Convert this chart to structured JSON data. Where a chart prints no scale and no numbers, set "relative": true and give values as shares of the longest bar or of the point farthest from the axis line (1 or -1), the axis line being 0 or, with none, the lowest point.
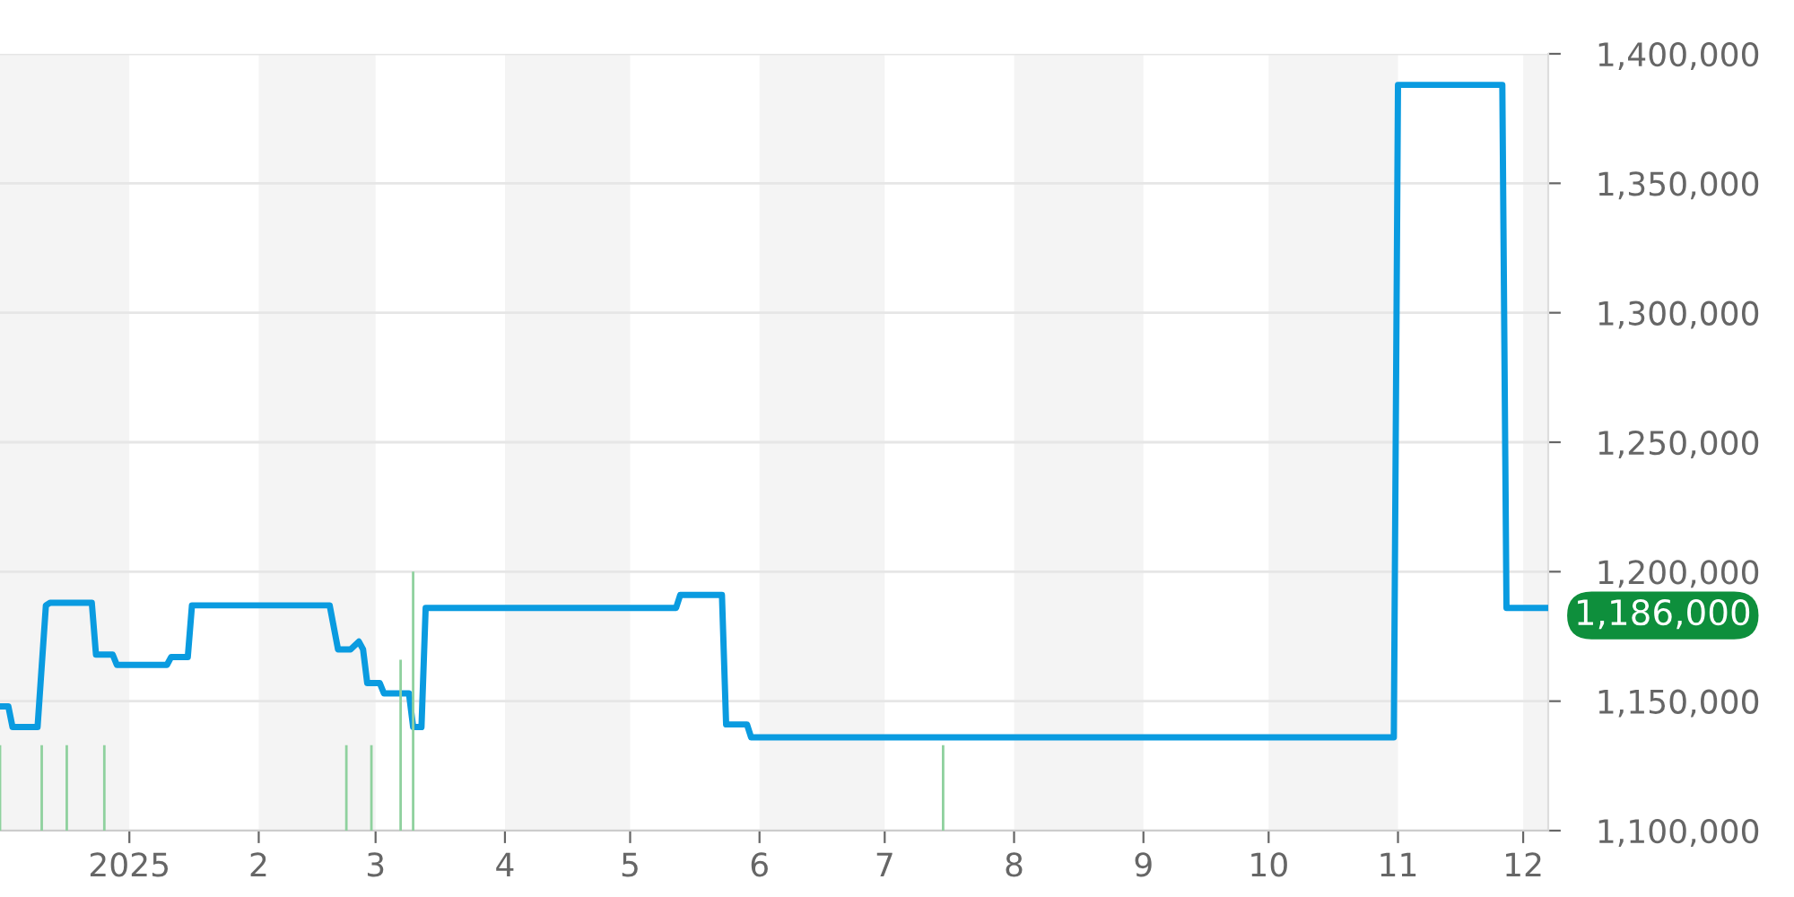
{
  "chart_data": [
    {
      "type": "line",
      "xlim": [
        "2024-12-01",
        "2025-12-07"
      ],
      "xticks": [
        {
          "value": "2025-01-01",
          "label": "2025"
        },
        {
          "value": "2025-02-01",
          "label": "2"
        },
        {
          "value": "2025-03-01",
          "label": "3"
        },
        {
          "value": "2025-04-01",
          "label": "4"
        },
        {
          "value": "2025-05-01",
          "label": "5"
        },
        {
          "value": "2025-06-01",
          "label": "6"
        },
        {
          "value": "2025-07-01",
          "label": "7"
        },
        {
          "value": "2025-08-01",
          "label": "8"
        },
        {
          "value": "2025-09-01",
          "label": "9"
        },
        {
          "value": "2025-10-01",
          "label": "10"
        },
        {
          "value": "2025-11-01",
          "label": "11"
        },
        {
          "value": "2025-12-01",
          "label": "12"
        }
      ],
      "ylim": [
        1100000,
        1400000
      ],
      "yticks": [
        {
          "value": 1100000,
          "label": "1,100,000"
        },
        {
          "value": 1150000,
          "label": "1,150,000"
        },
        {
          "value": 1200000,
          "label": "1,200,000"
        },
        {
          "value": 1250000,
          "label": "1,250,000"
        },
        {
          "value": 1300000,
          "label": "1,300,000"
        },
        {
          "value": 1350000,
          "label": "1,350,000"
        },
        {
          "value": 1400000,
          "label": "1,400,000"
        }
      ],
      "grid": "y",
      "bands": [
        {
          "axis": "x",
          "from": "2024-12-01",
          "to": "2025-01-01",
          "color": "#f4f4f4"
        },
        {
          "axis": "x",
          "from": "2025-02-01",
          "to": "2025-03-01",
          "color": "#f4f4f4"
        },
        {
          "axis": "x",
          "from": "2025-04-01",
          "to": "2025-05-01",
          "color": "#f4f4f4"
        },
        {
          "axis": "x",
          "from": "2025-06-01",
          "to": "2025-07-01",
          "color": "#f4f4f4"
        },
        {
          "axis": "x",
          "from": "2025-08-01",
          "to": "2025-09-01",
          "color": "#f4f4f4"
        },
        {
          "axis": "x",
          "from": "2025-10-01",
          "to": "2025-11-01",
          "color": "#f4f4f4"
        },
        {
          "axis": "x",
          "from": "2025-12-01",
          "to": "2025-12-07",
          "color": "#f4f4f4"
        }
      ],
      "series": [
        {
          "color": "#0a9be0",
          "x": [
            "2024-12-01",
            "2024-12-03",
            "2024-12-04",
            "2024-12-10",
            "2024-12-12",
            "2024-12-13",
            "2024-12-23",
            "2024-12-24",
            "2024-12-28",
            "2024-12-29",
            "2025-01-10",
            "2025-01-11",
            "2025-01-15",
            "2025-01-16",
            "2025-02-18",
            "2025-02-20",
            "2025-02-23",
            "2025-02-25",
            "2025-02-26",
            "2025-02-27",
            "2025-03-02",
            "2025-03-03",
            "2025-03-09",
            "2025-03-10",
            "2025-03-12",
            "2025-03-13",
            "2025-05-12",
            "2025-05-13",
            "2025-05-23",
            "2025-05-24",
            "2025-05-29",
            "2025-05-30",
            "2025-10-31",
            "2025-11-01",
            "2025-11-26",
            "2025-11-27",
            "2025-12-07"
          ],
          "values": [
            1148000,
            1148000,
            1140000,
            1140000,
            1187000,
            1188000,
            1188000,
            1168000,
            1168000,
            1164000,
            1164000,
            1167000,
            1167000,
            1187000,
            1187000,
            1170000,
            1170000,
            1173000,
            1170000,
            1157000,
            1157000,
            1153000,
            1153000,
            1140000,
            1140000,
            1186000,
            1186000,
            1191000,
            1191000,
            1141000,
            1141000,
            1136000,
            1136000,
            1388000,
            1388000,
            1186000,
            1186000
          ]
        }
      ],
      "annotations": [
        {
          "text": "1,186,000",
          "x": "2025-12-07",
          "y": 1186000
        }
      ]
    },
    {
      "type": "bar",
      "relative": true,
      "xlim": [
        "2024-12-01",
        "2025-12-07"
      ],
      "series": [
        {
          "color": "#8fd19e",
          "x": [
            "2024-12-01",
            "2024-12-11",
            "2024-12-17",
            "2024-12-26",
            "2025-02-22",
            "2025-02-28",
            "2025-03-07",
            "2025-03-10",
            "2025-07-15"
          ],
          "values": [
            0.33,
            0.33,
            0.33,
            0.33,
            0.33,
            0.33,
            0.66,
            1,
            0.33
          ]
        }
      ]
    }
  ]
}
